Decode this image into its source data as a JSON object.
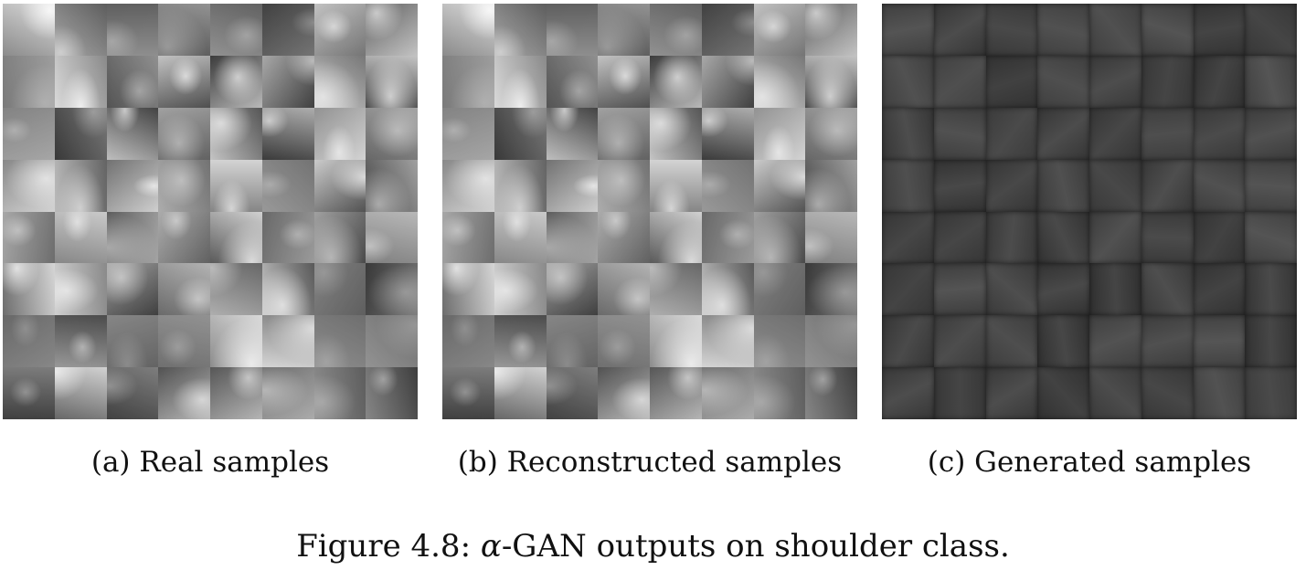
{
  "panels": [
    {
      "id": "a",
      "caption": "(a) Real samples",
      "kind": "real"
    },
    {
      "id": "b",
      "caption": "(b) Reconstructed samples",
      "kind": "recon"
    },
    {
      "id": "c",
      "caption": "(c) Generated samples",
      "kind": "gen"
    }
  ],
  "figure": {
    "label": "Figure 4.8:",
    "alpha": "α",
    "rest": "-GAN outputs on shoulder class."
  },
  "colors": {
    "background": "#ffffff",
    "xray_dark": "#1c1c1c",
    "xray_light": "#d8d8d8",
    "generated_tone": "#3a3a3a"
  },
  "grid": {
    "rows": 8,
    "cols": 8
  }
}
